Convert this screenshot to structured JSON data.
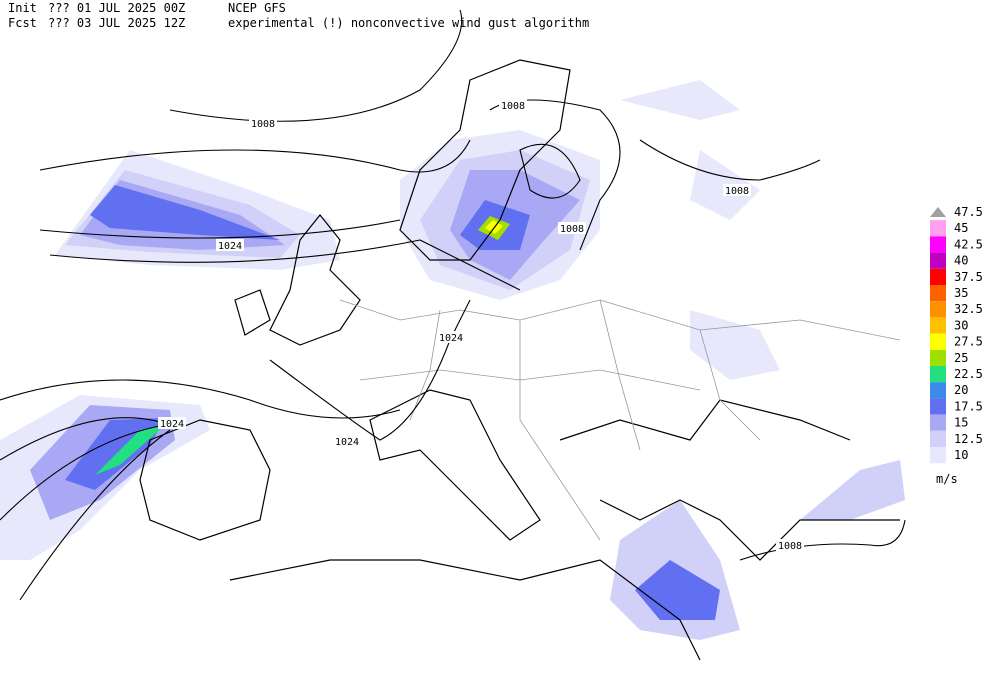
{
  "header": {
    "init_label": "Init",
    "init_time": "??? 01 JUL 2025 00Z",
    "model": "NCEP GFS",
    "fcst_label": "Fcst",
    "fcst_time": "??? 03 JUL 2025 12Z",
    "product": "experimental (!) nonconvective wind gust algorithm"
  },
  "isobar_labels": [
    "1008",
    "1008",
    "1008",
    "1008",
    "1008",
    "1024",
    "1024",
    "1024",
    "1024"
  ],
  "colorbar": {
    "levels": [
      {
        "label": "47.5",
        "color": "#a0a0a0"
      },
      {
        "label": "45",
        "color": "#ffa0f0"
      },
      {
        "label": "42.5",
        "color": "#ff00ff"
      },
      {
        "label": "40",
        "color": "#c000c0"
      },
      {
        "label": "37.5",
        "color": "#ff0000"
      },
      {
        "label": "35",
        "color": "#ff6000"
      },
      {
        "label": "32.5",
        "color": "#ff9000"
      },
      {
        "label": "30",
        "color": "#ffc000"
      },
      {
        "label": "27.5",
        "color": "#ffff00"
      },
      {
        "label": "25",
        "color": "#a0e000"
      },
      {
        "label": "22.5",
        "color": "#20e080"
      },
      {
        "label": "20",
        "color": "#3a8ce8"
      },
      {
        "label": "17.5",
        "color": "#6070f0"
      },
      {
        "label": "15",
        "color": "#a8a8f4"
      },
      {
        "label": "12.5",
        "color": "#d0d0f8"
      },
      {
        "label": "10",
        "color": "#e8e8fc"
      }
    ],
    "units": "m/s"
  }
}
